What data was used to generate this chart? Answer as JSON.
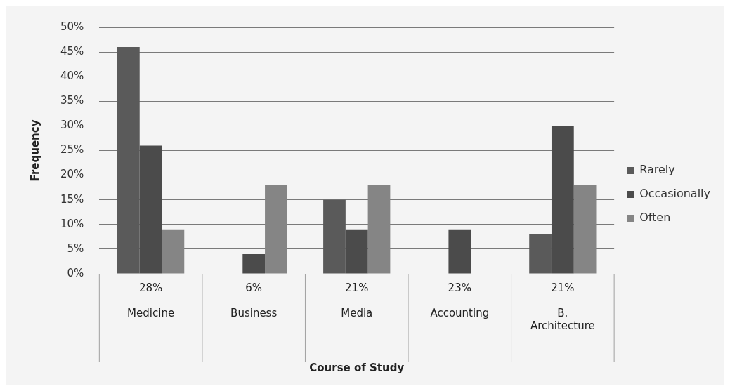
{
  "chart_data": {
    "type": "bar",
    "xlabel": "Course of Study",
    "ylabel": "Frequency",
    "categories": [
      "Medicine",
      "Business",
      "Media",
      "Accounting",
      "B. Architecture"
    ],
    "series": [
      {
        "name": "Rarely",
        "color": "#5a5a5a",
        "values": [
          46,
          0,
          15,
          0,
          8
        ]
      },
      {
        "name": "Occasionally",
        "color": "#4b4b4b",
        "values": [
          26,
          4,
          9,
          9,
          30
        ]
      },
      {
        "name": "Often",
        "color": "#858585",
        "values": [
          9,
          18,
          18,
          0,
          18
        ]
      }
    ],
    "annotations": [
      "28%",
      "6%",
      "21%",
      "23%",
      "21%"
    ],
    "ylim": [
      0,
      50
    ],
    "yticks": [
      {
        "value": 0,
        "label": "0%"
      },
      {
        "value": 5,
        "label": "5%"
      },
      {
        "value": 10,
        "label": "10%"
      },
      {
        "value": 15,
        "label": "15%"
      },
      {
        "value": 20,
        "label": "20%"
      },
      {
        "value": 25,
        "label": "25%"
      },
      {
        "value": 30,
        "label": "30%"
      },
      {
        "value": 35,
        "label": "35%"
      },
      {
        "value": 40,
        "label": "40%"
      },
      {
        "value": 45,
        "label": "45%"
      },
      {
        "value": 50,
        "label": "50%"
      }
    ],
    "grid": "y",
    "legend": "right"
  }
}
